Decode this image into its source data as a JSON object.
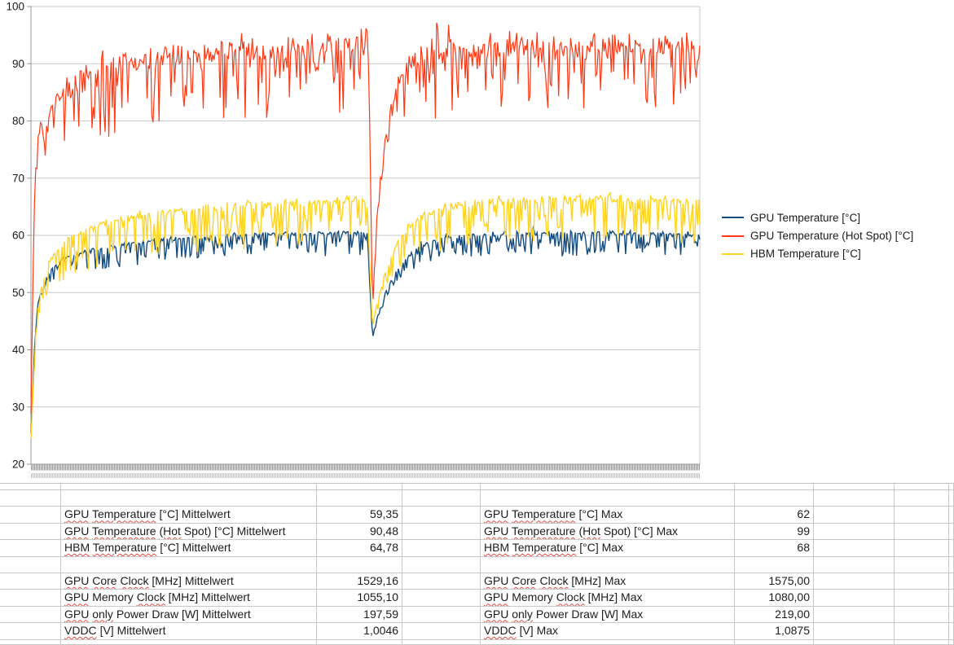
{
  "window": {
    "kind": "spreadsheet-with-embedded-chart",
    "background": "#ffffff"
  },
  "colors": {
    "series_gpu": "#134b7d",
    "series_hotspot": "#ff3814",
    "series_hbm": "#ffd320",
    "chart_grid": "#c9c9c9",
    "chart_axis": "#9a9a9a",
    "axis_comb_dark": "#9a9a9a",
    "axis_comb_light": "#e3e3e3",
    "axis_comb2_dark": "#c6c6c6",
    "axis_comb2_light": "#f0f0f0",
    "cell_grid": "#c8c8c8",
    "text": "#1a1a1a",
    "spellcheck_squiggle": "#e8473f"
  },
  "chart_data": {
    "type": "line",
    "title": "",
    "xlabel": "",
    "ylabel": "",
    "ylim": [
      20,
      100
    ],
    "yticks": [
      20,
      30,
      40,
      50,
      60,
      70,
      80,
      90,
      100
    ],
    "grid": "horizontal",
    "x_axis": {
      "labels_visible": false,
      "style": "dense-category-tick-comb"
    },
    "legend": {
      "position": "right"
    },
    "event_notes": [
      "all three series warm up from ~25-29 °C at start",
      "sharp synchronized dip at ~51% of the run (GPU to ~42, HBM to ~44, Hot Spot to ~47) followed by gradual recovery",
      "Hot Spot spikes to 99 just before the dip"
    ],
    "series": [
      {
        "name": "GPU Temperature [°C]",
        "color": "#134b7d",
        "mean": 59.35,
        "max": 62,
        "clip_max": 62,
        "trend": [
          [
            0,
            25.5
          ],
          [
            0.003,
            33
          ],
          [
            0.006,
            43
          ],
          [
            0.01,
            48
          ],
          [
            0.018,
            51.5
          ],
          [
            0.03,
            54
          ],
          [
            0.05,
            55.8
          ],
          [
            0.08,
            57
          ],
          [
            0.12,
            58
          ],
          [
            0.18,
            59
          ],
          [
            0.26,
            59.7
          ],
          [
            0.35,
            60.1
          ],
          [
            0.45,
            60.3
          ],
          [
            0.503,
            60.3
          ],
          [
            0.5105,
            42.3
          ],
          [
            0.517,
            45.5
          ],
          [
            0.53,
            50
          ],
          [
            0.545,
            53.5
          ],
          [
            0.565,
            56.5
          ],
          [
            0.59,
            58.5
          ],
          [
            0.62,
            59.6
          ],
          [
            0.7,
            60.2
          ],
          [
            0.85,
            60.4
          ],
          [
            1,
            60.1
          ]
        ],
        "noise": {
          "up": 0.6,
          "down": 4.2,
          "downProb": 0.42,
          "smallFactor": 0.12,
          "bigUpProb": 0.02,
          "bigUp": 1
        },
        "noise_scale": [
          [
            0,
            0.06
          ],
          [
            0.01,
            0.45
          ],
          [
            0.04,
            1
          ],
          [
            0.5,
            1
          ],
          [
            0.503,
            0.3
          ],
          [
            0.507,
            0.08
          ],
          [
            0.52,
            0.25
          ],
          [
            0.545,
            0.55
          ],
          [
            0.58,
            0.85
          ],
          [
            0.62,
            1
          ],
          [
            1,
            1
          ]
        ]
      },
      {
        "name": "GPU Temperature (Hot Spot) [°C]",
        "color": "#ff3814",
        "mean": 90.48,
        "max": 99,
        "clip_max": 99,
        "trend": [
          [
            0,
            29
          ],
          [
            0.002,
            45
          ],
          [
            0.005,
            65
          ],
          [
            0.008,
            74
          ],
          [
            0.012,
            78
          ],
          [
            0.02,
            81
          ],
          [
            0.035,
            83.5
          ],
          [
            0.06,
            86
          ],
          [
            0.1,
            88
          ],
          [
            0.15,
            89.8
          ],
          [
            0.22,
            91
          ],
          [
            0.3,
            92
          ],
          [
            0.4,
            92.6
          ],
          [
            0.499,
            92.8
          ],
          [
            0.503,
            98.5
          ],
          [
            0.5065,
            80
          ],
          [
            0.5105,
            47.5
          ],
          [
            0.517,
            62
          ],
          [
            0.525,
            72
          ],
          [
            0.535,
            81
          ],
          [
            0.55,
            87.5
          ],
          [
            0.575,
            90.5
          ],
          [
            0.62,
            92
          ],
          [
            0.7,
            92.6
          ],
          [
            0.85,
            92.8
          ],
          [
            1,
            92.6
          ]
        ],
        "noise": {
          "up": 3.2,
          "down": 12.5,
          "downProb": 0.3,
          "smallFactor": 0.2,
          "bigUpProb": 0.06,
          "bigUp": 4.5
        },
        "noise_scale": [
          [
            0,
            0.06
          ],
          [
            0.01,
            0.45
          ],
          [
            0.04,
            1
          ],
          [
            0.5,
            1
          ],
          [
            0.503,
            0.3
          ],
          [
            0.507,
            0.08
          ],
          [
            0.52,
            0.3
          ],
          [
            0.545,
            0.6
          ],
          [
            0.58,
            0.9
          ],
          [
            0.62,
            1
          ],
          [
            1,
            1
          ]
        ]
      },
      {
        "name": "HBM Temperature [°C]",
        "color": "#ffd320",
        "mean": 64.78,
        "max": 68,
        "clip_max": 68,
        "trend": [
          [
            0,
            24.8
          ],
          [
            0.003,
            32
          ],
          [
            0.006,
            41
          ],
          [
            0.01,
            47
          ],
          [
            0.018,
            52
          ],
          [
            0.03,
            56
          ],
          [
            0.05,
            59
          ],
          [
            0.08,
            61
          ],
          [
            0.12,
            62.5
          ],
          [
            0.18,
            63.8
          ],
          [
            0.26,
            64.8
          ],
          [
            0.35,
            65.5
          ],
          [
            0.45,
            66.2
          ],
          [
            0.503,
            66.2
          ],
          [
            0.5105,
            43.8
          ],
          [
            0.517,
            48
          ],
          [
            0.53,
            53.5
          ],
          [
            0.545,
            58
          ],
          [
            0.565,
            61.5
          ],
          [
            0.59,
            63.8
          ],
          [
            0.62,
            65
          ],
          [
            0.7,
            66
          ],
          [
            0.85,
            66.4
          ],
          [
            1,
            66
          ]
        ],
        "noise": {
          "up": 1.0,
          "down": 8,
          "downProb": 0.38,
          "smallFactor": 0.12,
          "bigUpProb": 0.03,
          "bigUp": 1.5
        },
        "noise_scale": [
          [
            0,
            0.06
          ],
          [
            0.01,
            0.45
          ],
          [
            0.04,
            1
          ],
          [
            0.5,
            1
          ],
          [
            0.503,
            0.3
          ],
          [
            0.507,
            0.08
          ],
          [
            0.52,
            0.25
          ],
          [
            0.545,
            0.55
          ],
          [
            0.58,
            0.85
          ],
          [
            0.62,
            1
          ],
          [
            1,
            1
          ]
        ]
      }
    ]
  },
  "table": {
    "rows": [
      null,
      null,
      {
        "label": [
          [
            "GPU",
            1
          ],
          [
            "Temperature",
            1
          ],
          [
            "[°C]",
            0
          ],
          [
            "Mittelwert",
            0
          ]
        ],
        "value": "59,35",
        "label2": [
          [
            "GPU",
            1
          ],
          [
            "Temperature",
            1
          ],
          [
            "[°C]",
            0
          ],
          [
            "Max",
            0
          ]
        ],
        "value2": "62"
      },
      {
        "label": [
          [
            "GPU",
            1
          ],
          [
            "Temperature",
            1
          ],
          [
            "(Hot",
            1
          ],
          [
            "Spot)",
            0
          ],
          [
            "[°C]",
            0
          ],
          [
            "Mittelwert",
            0
          ]
        ],
        "value": "90,48",
        "label2": [
          [
            "GPU",
            1
          ],
          [
            "Temperature",
            1
          ],
          [
            "(Hot",
            1
          ],
          [
            "Spot)",
            0
          ],
          [
            "[°C]",
            0
          ],
          [
            "Max",
            0
          ]
        ],
        "value2": "99"
      },
      {
        "label": [
          [
            "HBM",
            1
          ],
          [
            "Temperature",
            1
          ],
          [
            "[°C]",
            0
          ],
          [
            "Mittelwert",
            0
          ]
        ],
        "value": "64,78",
        "label2": [
          [
            "HBM",
            1
          ],
          [
            "Temperature",
            1
          ],
          [
            "[°C]",
            0
          ],
          [
            "Max",
            0
          ]
        ],
        "value2": "68"
      },
      null,
      {
        "label": [
          [
            "GPU",
            1
          ],
          [
            "Core",
            1
          ],
          [
            "Clock",
            1
          ],
          [
            "[MHz]",
            0
          ],
          [
            "Mittelwert",
            0
          ]
        ],
        "value": "1529,16",
        "label2": [
          [
            "GPU",
            1
          ],
          [
            "Core",
            1
          ],
          [
            "Clock",
            1
          ],
          [
            "[MHz]",
            0
          ],
          [
            "Max",
            0
          ]
        ],
        "value2": "1575,00"
      },
      {
        "label": [
          [
            "GPU",
            1
          ],
          [
            "Memory",
            0
          ],
          [
            "Clock",
            1
          ],
          [
            "[MHz]",
            0
          ],
          [
            "Mittelwert",
            0
          ]
        ],
        "value": "1055,10",
        "label2": [
          [
            "GPU",
            1
          ],
          [
            "Memory",
            0
          ],
          [
            "Clock",
            1
          ],
          [
            "[MHz]",
            0
          ],
          [
            "Max",
            0
          ]
        ],
        "value2": "1080,00"
      },
      {
        "label": [
          [
            "GPU",
            1
          ],
          [
            "only",
            1
          ],
          [
            "Power",
            0
          ],
          [
            "Draw",
            0
          ],
          [
            "[W]",
            0
          ],
          [
            "Mittelwert",
            0
          ]
        ],
        "value": "197,59",
        "label2": [
          [
            "GPU",
            1
          ],
          [
            "only",
            1
          ],
          [
            "Power",
            0
          ],
          [
            "Draw",
            0
          ],
          [
            "[W]",
            0
          ],
          [
            "Max",
            0
          ]
        ],
        "value2": "219,00"
      },
      {
        "label": [
          [
            "VDDC",
            1
          ],
          [
            "[V]",
            0
          ],
          [
            "Mittelwert",
            0
          ]
        ],
        "value": "1,0046",
        "label2": [
          [
            "VDDC",
            1
          ],
          [
            "[V]",
            0
          ],
          [
            "Max",
            0
          ]
        ],
        "value2": "1,0875"
      },
      null
    ]
  }
}
